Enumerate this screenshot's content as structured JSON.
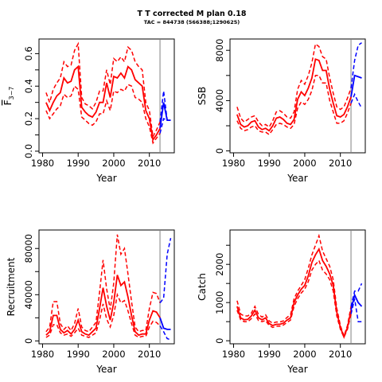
{
  "figure": {
    "title": "T T corrected M plan 0.18",
    "subtitle": "TAC = 844738 (566388;1290625)"
  },
  "colors": {
    "history": "#ff0000",
    "projection": "#0000ff",
    "marker": "#bebebe"
  },
  "chart_data": [
    {
      "type": "line",
      "id": "fbar",
      "ylabel": "F̅₃₋₇",
      "ylabel_base": "F",
      "ylabel_sub": "3−7",
      "xlabel": "Year",
      "xlim": [
        1979,
        2017
      ],
      "ylim": [
        -0.01,
        0.69
      ],
      "xticks": [
        1980,
        1990,
        2000,
        2010
      ],
      "yticks": [
        0.0,
        0.1,
        0.2,
        0.3,
        0.4,
        0.5,
        0.6
      ],
      "yticklabels": [
        "0.0",
        "",
        "0.2",
        "",
        "0.4",
        "",
        "0.6"
      ],
      "vline": 2013,
      "history": {
        "x": [
          1981,
          1982,
          1983,
          1984,
          1985,
          1986,
          1987,
          1988,
          1989,
          1990,
          1991,
          1992,
          1993,
          1994,
          1995,
          1996,
          1997,
          1998,
          1999,
          2000,
          2001,
          2002,
          2003,
          2004,
          2005,
          2006,
          2007,
          2008,
          2009,
          2010,
          2011,
          2012,
          2013
        ],
        "mid": [
          0.3,
          0.25,
          0.3,
          0.34,
          0.36,
          0.45,
          0.42,
          0.43,
          0.5,
          0.52,
          0.27,
          0.24,
          0.22,
          0.21,
          0.24,
          0.3,
          0.3,
          0.42,
          0.33,
          0.46,
          0.45,
          0.48,
          0.45,
          0.52,
          0.5,
          0.44,
          0.42,
          0.4,
          0.25,
          0.2,
          0.07,
          0.1,
          0.14
        ],
        "lower": [
          0.25,
          0.2,
          0.23,
          0.26,
          0.28,
          0.35,
          0.33,
          0.34,
          0.4,
          0.38,
          0.21,
          0.19,
          0.17,
          0.16,
          0.18,
          0.23,
          0.23,
          0.31,
          0.25,
          0.37,
          0.36,
          0.38,
          0.37,
          0.41,
          0.4,
          0.33,
          0.32,
          0.3,
          0.2,
          0.15,
          0.05,
          0.08,
          0.11
        ],
        "upper": [
          0.36,
          0.3,
          0.38,
          0.42,
          0.45,
          0.55,
          0.52,
          0.53,
          0.62,
          0.66,
          0.33,
          0.29,
          0.28,
          0.26,
          0.3,
          0.37,
          0.37,
          0.5,
          0.41,
          0.57,
          0.55,
          0.58,
          0.55,
          0.64,
          0.62,
          0.55,
          0.52,
          0.5,
          0.3,
          0.25,
          0.09,
          0.13,
          0.18
        ]
      },
      "projection": {
        "x": [
          2013,
          2014,
          2015,
          2016
        ],
        "mid": [
          0.14,
          0.3,
          0.19,
          0.19
        ],
        "lower": [
          0.11,
          0.2,
          0.19,
          0.19
        ],
        "upper": [
          0.18,
          0.37,
          0.19,
          0.19
        ]
      }
    },
    {
      "type": "line",
      "id": "ssb",
      "ylabel": "SSB",
      "xlabel": "Year",
      "xlim": [
        1979,
        2017
      ],
      "ylim": [
        -150,
        8900
      ],
      "xticks": [
        1980,
        1990,
        2000,
        2010
      ],
      "yticks": [
        0,
        2000,
        4000,
        6000,
        8000
      ],
      "yticklabels": [
        "0",
        "",
        "4000",
        "",
        "8000"
      ],
      "vline": 2013,
      "history": {
        "x": [
          1981,
          1982,
          1983,
          1984,
          1985,
          1986,
          1987,
          1988,
          1989,
          1990,
          1991,
          1992,
          1993,
          1994,
          1995,
          1996,
          1997,
          1998,
          1999,
          2000,
          2001,
          2002,
          2003,
          2004,
          2005,
          2006,
          2007,
          2008,
          2009,
          2010,
          2011,
          2012,
          2013
        ],
        "mid": [
          2900,
          2100,
          1900,
          2000,
          2300,
          2400,
          1900,
          1700,
          1800,
          1600,
          2000,
          2600,
          2700,
          2500,
          2200,
          2100,
          2500,
          4100,
          4700,
          4400,
          5000,
          5800,
          7300,
          7200,
          6400,
          6400,
          4900,
          3800,
          2800,
          2700,
          2900,
          3500,
          4300
        ],
        "lower": [
          2400,
          1800,
          1600,
          1700,
          1900,
          2000,
          1600,
          1500,
          1500,
          1300,
          1700,
          2100,
          2200,
          2100,
          1900,
          1800,
          2100,
          3400,
          3900,
          3700,
          4100,
          4800,
          6000,
          6000,
          5400,
          5400,
          4000,
          3100,
          2200,
          2200,
          2400,
          3000,
          3800
        ],
        "upper": [
          3500,
          2600,
          2300,
          2500,
          2700,
          2800,
          2300,
          2000,
          2100,
          1900,
          2400,
          3100,
          3200,
          3000,
          2700,
          2600,
          3100,
          4900,
          5600,
          5300,
          6000,
          7000,
          8500,
          8300,
          7500,
          7300,
          5800,
          4600,
          3500,
          3300,
          3500,
          4200,
          5000
        ]
      },
      "projection": {
        "x": [
          2013,
          2014,
          2015,
          2016
        ],
        "mid": [
          4300,
          6000,
          5900,
          5800
        ],
        "lower": [
          3800,
          4500,
          3900,
          3400
        ],
        "upper": [
          5000,
          7200,
          8400,
          8600
        ]
      }
    },
    {
      "type": "line",
      "id": "recruitment",
      "ylabel": "Recruitment",
      "xlabel": "Year",
      "xlim": [
        1979,
        2017
      ],
      "ylim": [
        -2500,
        96000
      ],
      "xticks": [
        1980,
        1990,
        2000,
        2010
      ],
      "yticks": [
        0,
        20000,
        40000,
        60000,
        80000
      ],
      "yticklabels": [
        "0",
        "",
        "40000",
        "",
        "80000"
      ],
      "vline": 2013,
      "history": {
        "x": [
          1981,
          1982,
          1983,
          1984,
          1985,
          1986,
          1987,
          1988,
          1989,
          1990,
          1991,
          1992,
          1993,
          1994,
          1995,
          1996,
          1997,
          1998,
          1999,
          2000,
          2001,
          2002,
          2003,
          2004,
          2005,
          2006,
          2007,
          2008,
          2009,
          2010,
          2011,
          2012,
          2013
        ],
        "mid": [
          5000,
          8000,
          22000,
          22000,
          10000,
          7000,
          9000,
          6000,
          10000,
          18000,
          8000,
          6000,
          5000,
          8000,
          11000,
          28000,
          46000,
          30000,
          18000,
          33000,
          57000,
          48000,
          51000,
          38000,
          22000,
          8000,
          5000,
          6000,
          6000,
          18000,
          26000,
          25000,
          20000
        ],
        "lower": [
          3000,
          5000,
          14000,
          14000,
          7000,
          5000,
          6000,
          4000,
          7000,
          11000,
          5000,
          4000,
          3000,
          5000,
          7000,
          18000,
          32000,
          19000,
          12000,
          22000,
          40000,
          33000,
          35000,
          26000,
          15000,
          5000,
          3000,
          4000,
          4000,
          12000,
          17000,
          16000,
          13000
        ],
        "upper": [
          8000,
          12000,
          34000,
          34000,
          15000,
          10000,
          13000,
          9000,
          15000,
          28000,
          12000,
          9000,
          8000,
          12000,
          16000,
          42000,
          70000,
          45000,
          27000,
          50000,
          92000,
          75000,
          80000,
          58000,
          34000,
          12000,
          8000,
          9000,
          9000,
          28000,
          42000,
          41000,
          33000
        ]
      },
      "projection": {
        "x": [
          2013,
          2014,
          2015,
          2016
        ],
        "mid": [
          20000,
          11000,
          10000,
          10000
        ],
        "lower": [
          13000,
          8000,
          2000,
          1000
        ],
        "upper": [
          33000,
          37000,
          75000,
          89000
        ]
      }
    },
    {
      "type": "line",
      "id": "catch",
      "ylabel": "Catch",
      "xlabel": "Year",
      "xlim": [
        1979,
        2017
      ],
      "ylim": [
        -80,
        2900
      ],
      "xticks": [
        1980,
        1990,
        2000,
        2010
      ],
      "yticks": [
        0,
        500,
        1000,
        1500,
        2000,
        2500
      ],
      "yticklabels": [
        "0",
        "",
        "1000",
        "",
        "2000",
        ""
      ],
      "vline": 2013,
      "history": {
        "x": [
          1981,
          1982,
          1983,
          1984,
          1985,
          1986,
          1987,
          1988,
          1989,
          1990,
          1991,
          1992,
          1993,
          1994,
          1995,
          1996,
          1997,
          1998,
          1999,
          2000,
          2001,
          2002,
          2003,
          2004,
          2005,
          2006,
          2007,
          2008,
          2009,
          2010,
          2011,
          2012,
          2013
        ],
        "mid": [
          900,
          600,
          550,
          560,
          650,
          800,
          600,
          550,
          600,
          450,
          400,
          430,
          430,
          460,
          540,
          600,
          1000,
          1200,
          1350,
          1450,
          1700,
          2050,
          2250,
          2400,
          2100,
          1950,
          1750,
          1450,
          750,
          350,
          100,
          350,
          800
        ],
        "lower": [
          800,
          550,
          500,
          500,
          580,
          700,
          530,
          500,
          530,
          400,
          350,
          380,
          380,
          410,
          480,
          540,
          900,
          1100,
          1250,
          1350,
          1550,
          1850,
          2000,
          2100,
          1850,
          1750,
          1600,
          1300,
          650,
          300,
          90,
          300,
          700
        ],
        "upper": [
          1050,
          700,
          650,
          650,
          720,
          900,
          690,
          620,
          680,
          520,
          460,
          490,
          490,
          520,
          610,
          680,
          1100,
          1300,
          1450,
          1600,
          1900,
          2250,
          2500,
          2750,
          2350,
          2150,
          1950,
          1600,
          850,
          400,
          120,
          400,
          900
        ]
      },
      "projection": {
        "x": [
          2013,
          2014,
          2015,
          2016
        ],
        "mid": [
          800,
          1200,
          1000,
          900
        ],
        "lower": [
          700,
          1100,
          500,
          500
        ],
        "upper": [
          900,
          1300,
          1300,
          1500
        ]
      }
    }
  ]
}
